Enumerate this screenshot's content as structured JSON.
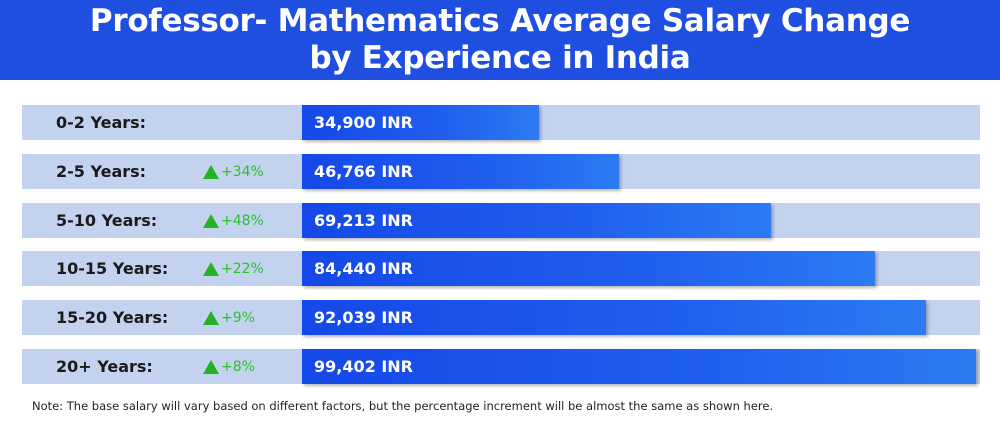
{
  "header": {
    "title_line1": "Professor- Mathematics Average Salary Change",
    "title_line2": "by Experience in India"
  },
  "colors": {
    "header_bg": "#1f4fe0",
    "row_bg": "#c3d3ef",
    "bar": "#1a55ea",
    "increase": "#22b322"
  },
  "chart_data": {
    "type": "bar",
    "orientation": "horizontal",
    "title": "Professor- Mathematics Average Salary Change by Experience in India",
    "categories": [
      "0-2 Years:",
      "2-5 Years:",
      "5-10 Years:",
      "10-15 Years:",
      "15-20 Years:",
      "20+ Years:"
    ],
    "values": [
      34900,
      46766,
      69213,
      84440,
      92039,
      99402
    ],
    "value_labels": [
      "34,900 INR",
      "46,766 INR",
      "69,213 INR",
      "84,440 INR",
      "92,039 INR",
      "99,402 INR"
    ],
    "changes": [
      "",
      "+34%",
      "+48%",
      "+22%",
      "+9%",
      "+8%"
    ],
    "xlim": [
      0,
      100000
    ],
    "unit": "INR",
    "grid": false,
    "legend": "none"
  },
  "note": "Note: The base salary will vary based on different factors, but the percentage increment will be almost the same as shown here."
}
